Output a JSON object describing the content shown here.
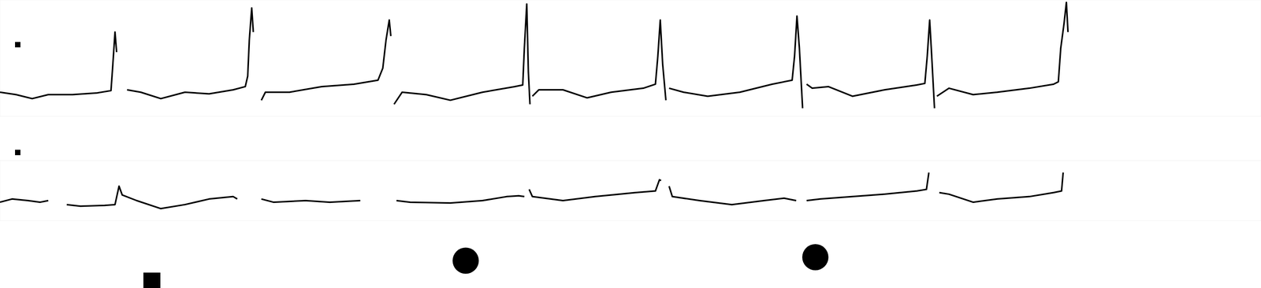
{
  "chart_data": [
    {
      "type": "line",
      "tick_labels": false,
      "line_style": "solid",
      "xlim": [
        0,
        1568
      ],
      "ylim": [
        -30,
        115
      ],
      "x": [
        0,
        20,
        40,
        60,
        90,
        120,
        138,
        140,
        143,
        145,
        150,
        158,
        175,
        200,
        230,
        260,
        290,
        305,
        308,
        310,
        313,
        315,
        320,
        325,
        330,
        360,
        400,
        440,
        470,
        476,
        480,
        484,
        486,
        488,
        490,
        500,
        530,
        560,
        600,
        640,
        650,
        652,
        655,
        657,
        659,
        660,
        662,
        670,
        700,
        730,
        760,
        800,
        815,
        818,
        821,
        824,
        828,
        830,
        832,
        850,
        880,
        920,
        960,
        985,
        988,
        991,
        994,
        998,
        1000,
        1003,
        1010,
        1030,
        1060,
        1100,
        1140,
        1150,
        1153,
        1156,
        1158,
        1162,
        1163,
        1165,
        1180,
        1210,
        1240,
        1280,
        1310,
        1316,
        1319,
        1323,
        1326,
        1328
      ],
      "series": [
        {
          "color": "#000000",
          "values": [
            0,
            -3,
            -8,
            -3,
            -3,
            -1,
            2,
            30,
            75,
            50,
            null,
            3,
            0,
            -8,
            0,
            -2,
            3,
            7,
            20,
            65,
            105,
            75,
            null,
            -10,
            0,
            0,
            7,
            10,
            15,
            30,
            65,
            90,
            70,
            null,
            -15,
            0,
            -3,
            -10,
            0,
            7,
            9,
            55,
            110,
            25,
            -15,
            null,
            -5,
            3,
            3,
            -7,
            0,
            5,
            10,
            45,
            90,
            35,
            -10,
            null,
            5,
            0,
            -5,
            0,
            10,
            15,
            45,
            95,
            55,
            -20,
            null,
            10,
            5,
            7,
            -5,
            3,
            9,
            11,
            45,
            90,
            55,
            -20,
            null,
            -5,
            5,
            -3,
            0,
            5,
            10,
            13,
            55,
            85,
            112,
            75
          ]
        }
      ]
    },
    {
      "type": "line",
      "tick_labels": false,
      "line_style": "solid",
      "xlim": [
        0,
        1568
      ],
      "ylim": [
        -30,
        45
      ],
      "x": [
        0,
        15,
        35,
        50,
        60,
        70,
        83,
        100,
        130,
        143,
        148,
        152,
        170,
        200,
        230,
        260,
        290,
        295,
        310,
        325,
        340,
        380,
        410,
        448,
        470,
        493,
        510,
        560,
        600,
        630,
        645,
        652,
        655,
        658,
        662,
        700,
        740,
        790,
        815,
        820,
        822,
        827,
        832,
        836,
        870,
        910,
        950,
        975,
        990,
        996,
        1003,
        1020,
        1060,
        1100,
        1140,
        1152,
        1155,
        1160,
        1168,
        1180,
        1210,
        1240,
        1280,
        1310,
        1320,
        1322
      ],
      "series": [
        {
          "color": "#000000",
          "values": [
            -7,
            -3,
            -5,
            -7,
            -5,
            null,
            -10,
            -12,
            -11,
            -10,
            13,
            2,
            -5,
            -15,
            -10,
            -3,
            0,
            -3,
            null,
            -3,
            -7,
            -5,
            -7,
            -5,
            null,
            -5,
            -7,
            -8,
            -5,
            0,
            1,
            0,
            null,
            9,
            0,
            -5,
            0,
            5,
            7,
            21,
            20,
            null,
            13,
            0,
            -5,
            -10,
            -5,
            -2,
            -5,
            null,
            -5,
            -3,
            0,
            3,
            7,
            9,
            30,
            null,
            5,
            3,
            -7,
            -3,
            0,
            5,
            7,
            30
          ]
        }
      ]
    }
  ]
}
